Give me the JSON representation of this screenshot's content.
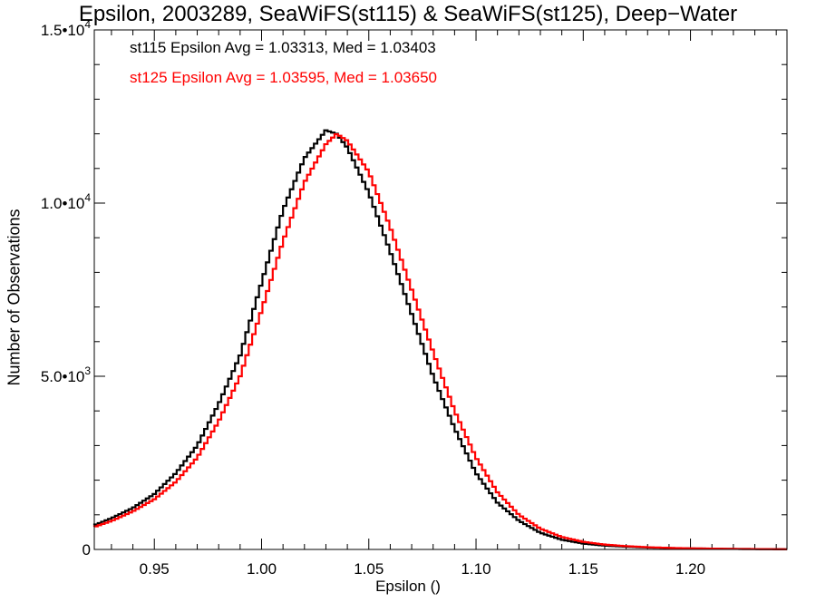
{
  "chart_data": {
    "type": "line",
    "title": "Epsilon, 2003289, SeaWiFS(st115) & SeaWiFS(st125), Deep−Water",
    "xlabel": "Epsilon ()",
    "ylabel": "Number of Observations",
    "xlim": [
      0.922,
      1.245
    ],
    "ylim": [
      0,
      15000
    ],
    "x_ticks": [
      0.95,
      1.0,
      1.05,
      1.1,
      1.15,
      1.2
    ],
    "x_tick_labels": [
      "0.95",
      "1.00",
      "1.05",
      "1.10",
      "1.15",
      "1.20"
    ],
    "y_ticks": [
      0,
      5000,
      10000,
      15000
    ],
    "y_tick_labels": [
      {
        "mantissa": "0",
        "exponent": ""
      },
      {
        "mantissa": "5.0•10",
        "exponent": "3"
      },
      {
        "mantissa": "1.0•10",
        "exponent": "4"
      },
      {
        "mantissa": "1.5•10",
        "exponent": "4"
      }
    ],
    "grid": false,
    "legend_placement": "top-left",
    "style": "step histogram",
    "series": [
      {
        "name": "st115",
        "legend_text": "st115 Epsilon Avg = 1.03313, Med = 1.03403",
        "color": "#000000",
        "x": [
          0.922,
          0.93,
          0.94,
          0.95,
          0.96,
          0.97,
          0.98,
          0.99,
          1.0,
          1.01,
          1.02,
          1.03,
          1.035,
          1.04,
          1.05,
          1.06,
          1.07,
          1.08,
          1.09,
          1.1,
          1.11,
          1.12,
          1.13,
          1.14,
          1.15,
          1.16,
          1.17,
          1.18,
          1.19,
          1.2,
          1.22,
          1.245
        ],
        "y": [
          700,
          900,
          1200,
          1600,
          2200,
          3000,
          4200,
          5600,
          7700,
          9800,
          11300,
          12100,
          12000,
          11600,
          10300,
          8600,
          6800,
          5000,
          3500,
          2200,
          1350,
          830,
          480,
          280,
          170,
          110,
          80,
          55,
          40,
          30,
          15,
          5
        ]
      },
      {
        "name": "st125",
        "legend_text": "st125 Epsilon Avg = 1.03595, Med = 1.03650",
        "color": "#ff0000",
        "x": [
          0.922,
          0.93,
          0.94,
          0.95,
          0.96,
          0.97,
          0.98,
          0.99,
          1.0,
          1.01,
          1.02,
          1.03,
          1.035,
          1.04,
          1.05,
          1.06,
          1.07,
          1.08,
          1.09,
          1.1,
          1.11,
          1.12,
          1.13,
          1.14,
          1.15,
          1.16,
          1.17,
          1.18,
          1.19,
          1.2,
          1.22,
          1.245
        ],
        "y": [
          650,
          820,
          1100,
          1450,
          1950,
          2650,
          3700,
          5000,
          6900,
          8900,
          10600,
          11700,
          12000,
          11800,
          10900,
          9300,
          7500,
          5700,
          4000,
          2650,
          1650,
          1000,
          600,
          360,
          220,
          140,
          95,
          65,
          45,
          32,
          16,
          5
        ]
      }
    ]
  }
}
